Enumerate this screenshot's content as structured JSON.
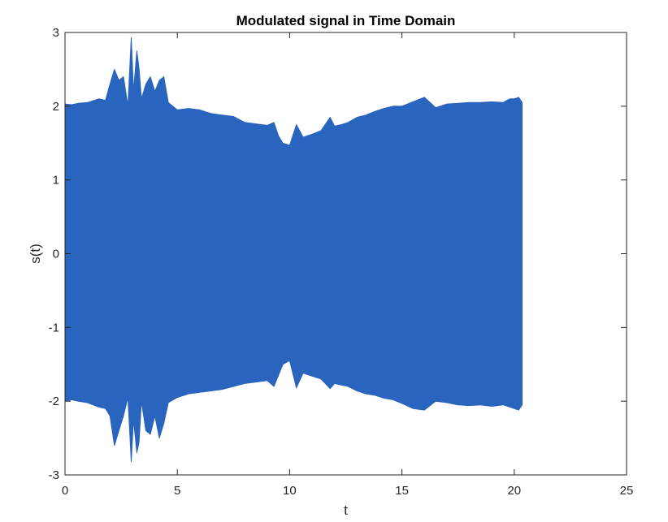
{
  "chart_data": {
    "type": "area",
    "title": "Modulated signal in Time Domain",
    "xlabel": "t",
    "ylabel": "s(t)",
    "xlim": [
      0,
      25
    ],
    "ylim": [
      -3,
      3
    ],
    "xticks": [
      "0",
      "5",
      "10",
      "15",
      "20",
      "25"
    ],
    "yticks": [
      "-3",
      "-2",
      "-1",
      "0",
      "1",
      "2",
      "3"
    ],
    "grid": false,
    "series_color": "#2964BE",
    "series": [
      {
        "x": [
          0,
          0.3,
          0.6,
          1.0,
          1.5,
          1.8,
          2.0,
          2.2,
          2.4,
          2.6,
          2.8,
          2.95,
          3.05,
          3.2,
          3.3,
          3.4,
          3.6,
          3.8,
          4.0,
          4.2,
          4.4,
          4.6,
          5.0,
          5.5,
          6.0,
          6.5,
          7.0,
          7.5,
          8.0,
          8.5,
          9.0,
          9.3,
          9.5,
          9.7,
          10.0,
          10.3,
          10.6,
          11.0,
          11.4,
          11.8,
          12.0,
          12.3,
          12.6,
          13.0,
          13.4,
          13.8,
          14.2,
          14.6,
          15.0,
          15.5,
          16.0,
          16.5,
          17.0,
          17.5,
          18.0,
          18.5,
          19.0,
          19.5,
          19.8,
          20.0,
          20.2,
          20.35
        ],
        "upper": [
          2.03,
          2.02,
          2.04,
          2.05,
          2.1,
          2.08,
          2.3,
          2.5,
          2.35,
          2.4,
          2.0,
          2.93,
          2.2,
          2.75,
          2.5,
          2.1,
          2.3,
          2.4,
          2.2,
          2.35,
          2.4,
          2.05,
          1.95,
          1.97,
          1.95,
          1.9,
          1.88,
          1.86,
          1.78,
          1.76,
          1.74,
          1.78,
          1.6,
          1.5,
          1.47,
          1.75,
          1.58,
          1.62,
          1.67,
          1.85,
          1.73,
          1.75,
          1.78,
          1.85,
          1.88,
          1.93,
          1.97,
          2.0,
          2.0,
          2.06,
          2.12,
          1.98,
          2.03,
          2.04,
          2.05,
          2.05,
          2.06,
          2.05,
          2.1,
          2.1,
          2.12,
          2.05
        ],
        "lower": [
          -2.0,
          -1.98,
          -2.0,
          -2.02,
          -2.08,
          -2.1,
          -2.2,
          -2.6,
          -2.4,
          -2.2,
          -1.95,
          -2.82,
          -2.25,
          -2.7,
          -2.55,
          -2.0,
          -2.4,
          -2.45,
          -2.2,
          -2.5,
          -2.3,
          -2.02,
          -1.95,
          -1.9,
          -1.88,
          -1.86,
          -1.84,
          -1.8,
          -1.76,
          -1.74,
          -1.72,
          -1.8,
          -1.65,
          -1.5,
          -1.45,
          -1.82,
          -1.62,
          -1.66,
          -1.7,
          -1.83,
          -1.76,
          -1.78,
          -1.8,
          -1.86,
          -1.9,
          -1.92,
          -1.96,
          -1.98,
          -2.03,
          -2.1,
          -2.12,
          -2.0,
          -2.02,
          -2.05,
          -2.06,
          -2.05,
          -2.07,
          -2.05,
          -2.08,
          -2.1,
          -2.12,
          -2.05
        ]
      }
    ]
  }
}
